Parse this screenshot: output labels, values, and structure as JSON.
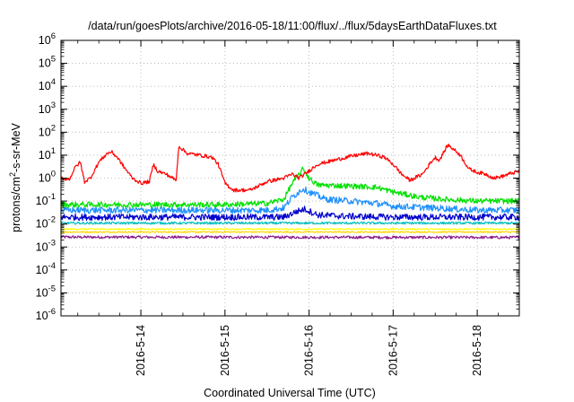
{
  "chart_data": {
    "type": "line",
    "title": "/data/run/goesPlots/archive/2016-05-18/11:00/flux/../flux/5daysEarthDataFluxes.txt",
    "xlabel": "Coordinated Universal Time (UTC)",
    "ylabel": {
      "pre": "protons/cm",
      "sup": "2",
      "post": "-s-sr-MeV"
    },
    "xlim": [
      13.05,
      18.5
    ],
    "ylim_exp": [
      -6,
      6
    ],
    "y_scale": "log",
    "grid": true,
    "x_ticks": [
      {
        "x": 14,
        "label": "2016-5-14"
      },
      {
        "x": 15,
        "label": "2016-5-15"
      },
      {
        "x": 16,
        "label": "2016-5-16"
      },
      {
        "x": 17,
        "label": "2016-5-17"
      },
      {
        "x": 18,
        "label": "2016-5-18"
      }
    ],
    "y_ticks": [
      {
        "exp": -6,
        "label": "10",
        "sup": "-6"
      },
      {
        "exp": -5,
        "label": "10",
        "sup": "-5"
      },
      {
        "exp": -4,
        "label": "10",
        "sup": "-4"
      },
      {
        "exp": -3,
        "label": "10",
        "sup": "-3"
      },
      {
        "exp": -2,
        "label": "10",
        "sup": "-2"
      },
      {
        "exp": -1,
        "label": "10",
        "sup": "-1"
      },
      {
        "exp": 0,
        "label": "10",
        "sup": "0"
      },
      {
        "exp": 1,
        "label": "10",
        "sup": "1"
      },
      {
        "exp": 2,
        "label": "10",
        "sup": "2"
      },
      {
        "exp": 3,
        "label": "10",
        "sup": "3"
      },
      {
        "exp": 4,
        "label": "10",
        "sup": "4"
      },
      {
        "exp": 5,
        "label": "10",
        "sup": "5"
      },
      {
        "exp": 6,
        "label": "10",
        "sup": "6"
      }
    ],
    "series": [
      {
        "color": "#ff0000",
        "noise": 0.08,
        "points": [
          [
            13.05,
            1.0
          ],
          [
            13.15,
            0.9
          ],
          [
            13.22,
            3.0
          ],
          [
            13.28,
            5.0
          ],
          [
            13.33,
            0.7
          ],
          [
            13.4,
            1.0
          ],
          [
            13.5,
            5.0
          ],
          [
            13.6,
            12
          ],
          [
            13.65,
            14
          ],
          [
            13.72,
            8
          ],
          [
            13.8,
            3
          ],
          [
            13.9,
            1.0
          ],
          [
            14.0,
            0.6
          ],
          [
            14.1,
            0.7
          ],
          [
            14.15,
            4.0
          ],
          [
            14.2,
            2.0
          ],
          [
            14.3,
            1.5
          ],
          [
            14.42,
            0.8
          ],
          [
            14.45,
            25
          ],
          [
            14.55,
            12
          ],
          [
            14.7,
            10
          ],
          [
            14.85,
            8
          ],
          [
            14.92,
            4
          ],
          [
            15.0,
            0.6
          ],
          [
            15.1,
            0.3
          ],
          [
            15.3,
            0.3
          ],
          [
            15.5,
            0.7
          ],
          [
            15.7,
            1.0
          ],
          [
            15.8,
            1.5
          ],
          [
            15.88,
            1.0
          ],
          [
            15.95,
            1.5
          ],
          [
            16.1,
            4.0
          ],
          [
            16.3,
            6.0
          ],
          [
            16.5,
            9.0
          ],
          [
            16.7,
            12
          ],
          [
            16.8,
            10
          ],
          [
            16.9,
            8
          ],
          [
            17.0,
            4
          ],
          [
            17.1,
            1.5
          ],
          [
            17.2,
            0.8
          ],
          [
            17.35,
            1.5
          ],
          [
            17.45,
            5.0
          ],
          [
            17.5,
            8.0
          ],
          [
            17.55,
            6.0
          ],
          [
            17.65,
            28
          ],
          [
            17.72,
            18
          ],
          [
            17.8,
            10
          ],
          [
            17.9,
            2.5
          ],
          [
            18.0,
            1.8
          ],
          [
            18.1,
            1.5
          ],
          [
            18.2,
            1.0
          ],
          [
            18.3,
            1.2
          ],
          [
            18.4,
            1.6
          ],
          [
            18.5,
            2.0
          ]
        ]
      },
      {
        "color": "#00e000",
        "noise": 0.12,
        "points": [
          [
            13.05,
            0.07
          ],
          [
            15.0,
            0.07
          ],
          [
            15.5,
            0.08
          ],
          [
            15.7,
            0.12
          ],
          [
            15.8,
            0.6
          ],
          [
            15.93,
            2.5
          ],
          [
            16.0,
            1.0
          ],
          [
            16.1,
            0.5
          ],
          [
            16.5,
            0.45
          ],
          [
            16.8,
            0.4
          ],
          [
            17.0,
            0.25
          ],
          [
            17.3,
            0.15
          ],
          [
            17.6,
            0.12
          ],
          [
            18.0,
            0.1
          ],
          [
            18.5,
            0.1
          ]
        ]
      },
      {
        "color": "#1e90ff",
        "noise": 0.14,
        "points": [
          [
            13.05,
            0.04
          ],
          [
            15.0,
            0.04
          ],
          [
            15.5,
            0.04
          ],
          [
            15.7,
            0.05
          ],
          [
            15.8,
            0.15
          ],
          [
            15.93,
            0.35
          ],
          [
            16.0,
            0.25
          ],
          [
            16.2,
            0.12
          ],
          [
            16.5,
            0.1
          ],
          [
            16.8,
            0.08
          ],
          [
            17.0,
            0.06
          ],
          [
            17.5,
            0.05
          ],
          [
            18.0,
            0.04
          ],
          [
            18.5,
            0.04
          ]
        ]
      },
      {
        "color": "#0000cd",
        "noise": 0.14,
        "points": [
          [
            13.05,
            0.02
          ],
          [
            15.0,
            0.02
          ],
          [
            15.7,
            0.02
          ],
          [
            15.85,
            0.035
          ],
          [
            15.95,
            0.045
          ],
          [
            16.1,
            0.025
          ],
          [
            16.4,
            0.022
          ],
          [
            17.0,
            0.02
          ],
          [
            18.5,
            0.02
          ]
        ]
      },
      {
        "color": "#00c0c0",
        "noise": 0.05,
        "points": [
          [
            13.05,
            0.011
          ],
          [
            18.5,
            0.011
          ]
        ]
      },
      {
        "color": "#ffff00",
        "noise": 0.03,
        "points": [
          [
            13.05,
            0.006
          ],
          [
            18.5,
            0.006
          ]
        ]
      },
      {
        "color": "#ffd700",
        "noise": 0.03,
        "points": [
          [
            13.05,
            0.0045
          ],
          [
            18.5,
            0.0045
          ]
        ]
      },
      {
        "color": "#8b1a8b",
        "noise": 0.06,
        "points": [
          [
            13.05,
            0.0027
          ],
          [
            18.5,
            0.0026
          ]
        ]
      }
    ]
  }
}
